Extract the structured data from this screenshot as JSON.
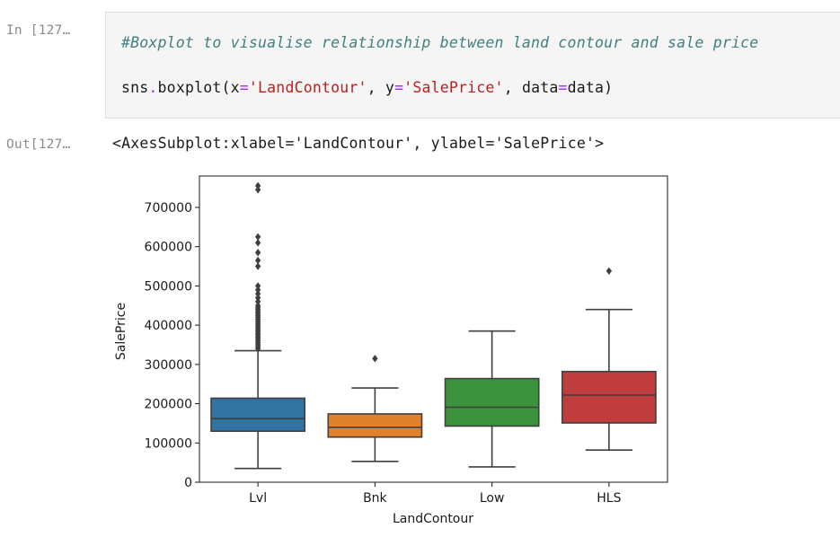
{
  "cell": {
    "in_prompt": "In [127…",
    "out_prompt": "Out[127…",
    "code_comment": "#Boxplot to visualise relationship between land contour and sale price",
    "code": {
      "func": "sns",
      "dot": ".",
      "method": "boxplot(x",
      "eq1": "=",
      "arg1": "'LandContour'",
      "sep1": ", y",
      "eq2": "=",
      "arg2": "'SalePrice'",
      "sep2": ", data",
      "eq3": "=",
      "arg3": "data)"
    },
    "output_text": "<AxesSubplot:xlabel='LandContour', ylabel='SalePrice'>"
  },
  "chart_data": {
    "type": "boxplot",
    "xlabel": "LandContour",
    "ylabel": "SalePrice",
    "ylim": [
      0,
      780000
    ],
    "yticks": [
      0,
      100000,
      200000,
      300000,
      400000,
      500000,
      600000,
      700000
    ],
    "ytick_labels": [
      "0",
      "100000",
      "200000",
      "300000",
      "400000",
      "500000",
      "600000",
      "700000"
    ],
    "grid": false,
    "categories": [
      "Lvl",
      "Bnk",
      "Low",
      "HLS"
    ],
    "colors": [
      "#3274a1",
      "#e1812c",
      "#3a923a",
      "#c03d3e"
    ],
    "boxes": [
      {
        "category": "Lvl",
        "whisker_low": 35000,
        "q1": 130000,
        "median": 162000,
        "q3": 214000,
        "whisker_high": 335000,
        "outliers": [
          340000,
          345000,
          350000,
          355000,
          360000,
          365000,
          370000,
          375000,
          380000,
          385000,
          390000,
          395000,
          400000,
          405000,
          410000,
          415000,
          420000,
          425000,
          430000,
          435000,
          440000,
          445000,
          450000,
          460000,
          470000,
          480000,
          490000,
          500000,
          550000,
          565000,
          585000,
          610000,
          625000,
          745000,
          755000
        ]
      },
      {
        "category": "Bnk",
        "whisker_low": 53000,
        "q1": 115000,
        "median": 140000,
        "q3": 174000,
        "whisker_high": 240000,
        "outliers": [
          315000
        ]
      },
      {
        "category": "Low",
        "whisker_low": 39000,
        "q1": 143000,
        "median": 191000,
        "q3": 264000,
        "whisker_high": 385000,
        "outliers": []
      },
      {
        "category": "HLS",
        "whisker_low": 82000,
        "q1": 151000,
        "median": 222000,
        "q3": 282000,
        "whisker_high": 440000,
        "outliers": [
          538000
        ]
      }
    ]
  }
}
